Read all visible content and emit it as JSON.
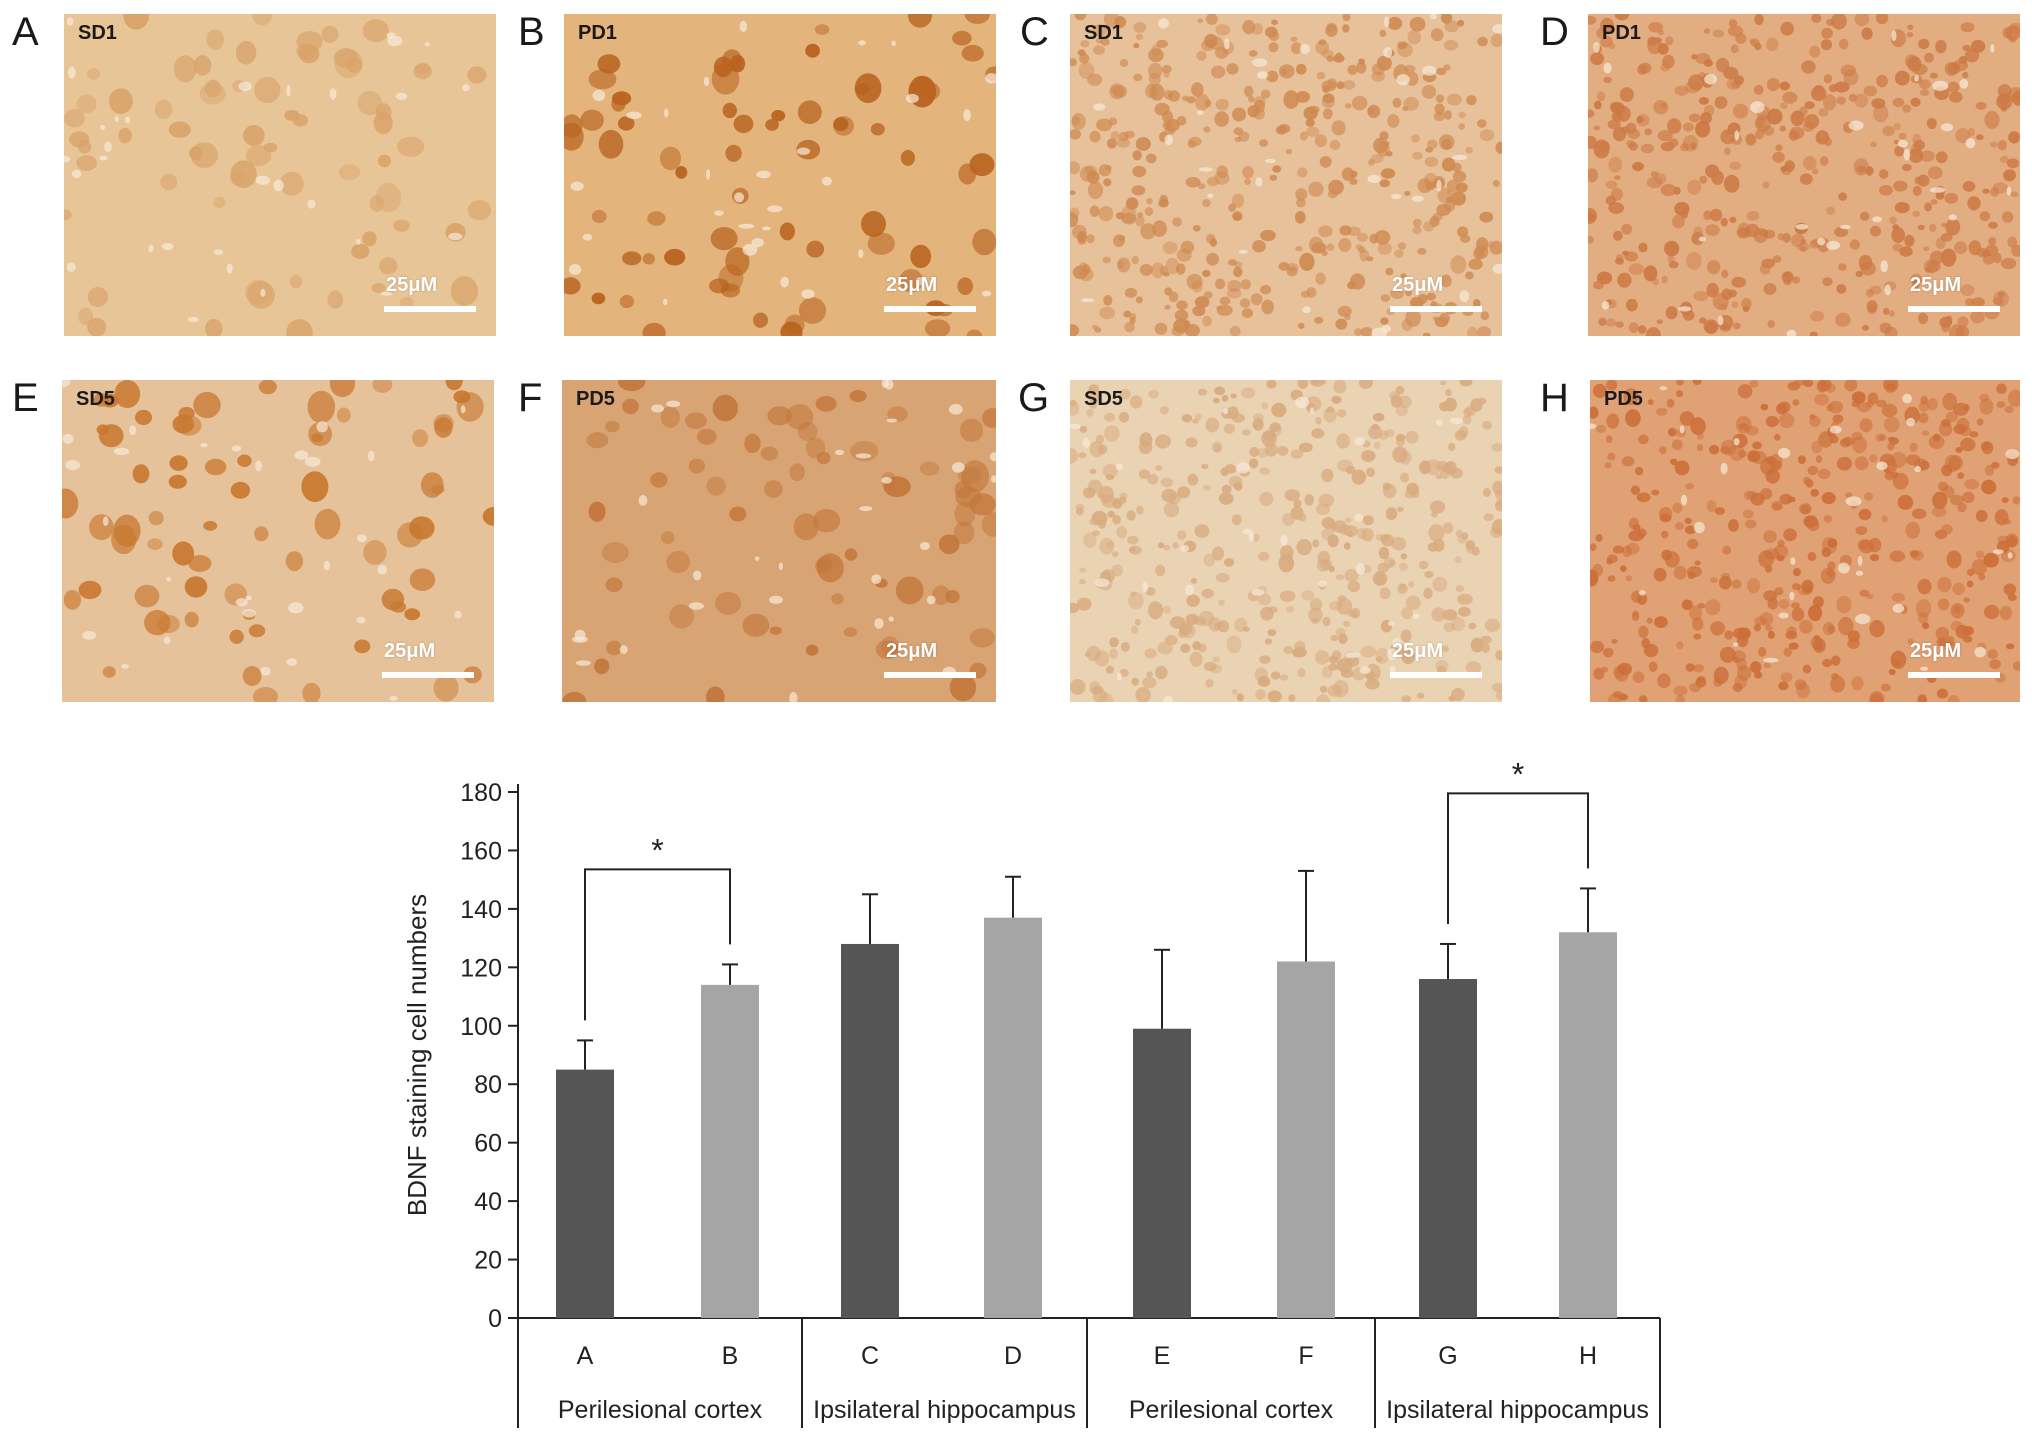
{
  "panels": [
    {
      "letter": "A",
      "label": "SD1",
      "scale": "25μM",
      "tone": "#d9a36a",
      "bg": "#e7c597",
      "dense": false
    },
    {
      "letter": "B",
      "label": "PD1",
      "scale": "25μM",
      "tone": "#b8631f",
      "bg": "#e3b47c",
      "dense": false
    },
    {
      "letter": "C",
      "label": "SD1",
      "scale": "25μM",
      "tone": "#cf8a52",
      "bg": "#e7c19a",
      "dense": true
    },
    {
      "letter": "D",
      "label": "PD1",
      "scale": "25μM",
      "tone": "#cc7a45",
      "bg": "#e3ad82",
      "dense": true
    },
    {
      "letter": "E",
      "label": "SD5",
      "scale": "25μM",
      "tone": "#c87830",
      "bg": "#e6c29a",
      "dense": false
    },
    {
      "letter": "F",
      "label": "PD5",
      "scale": "25μM",
      "tone": "#c2773c",
      "bg": "#d9a473",
      "dense": false
    },
    {
      "letter": "G",
      "label": "SD5",
      "scale": "25μM",
      "tone": "#d8ab80",
      "bg": "#ead3b3",
      "dense": true
    },
    {
      "letter": "H",
      "label": "PD5",
      "scale": "25μM",
      "tone": "#cc6f3a",
      "bg": "#e0a274",
      "dense": true
    }
  ],
  "chart_data": {
    "type": "bar",
    "categories": [
      "A",
      "B",
      "C",
      "D",
      "E",
      "F",
      "G",
      "H"
    ],
    "values": [
      85,
      114,
      128,
      137,
      99,
      122,
      116,
      132
    ],
    "errors": [
      10,
      7,
      17,
      14,
      27,
      31,
      12,
      15
    ],
    "bar_colors": [
      "#555555",
      "#a5a5a5",
      "#555555",
      "#a5a5a5",
      "#555555",
      "#a5a5a5",
      "#555555",
      "#a5a5a5"
    ],
    "groups": [
      "Perilesional cortex",
      "Ipsilateral hippocampus",
      "Perilesional cortex",
      "Ipsilateral hippocampus"
    ],
    "ylabel": "BDNF staining cell numbers",
    "ylim": [
      0,
      180
    ],
    "yticks": [
      0,
      20,
      40,
      60,
      80,
      100,
      120,
      140,
      160,
      180
    ],
    "significance": [
      {
        "from": "A",
        "to": "B",
        "label": "*"
      },
      {
        "from": "G",
        "to": "H",
        "label": "*"
      }
    ]
  }
}
